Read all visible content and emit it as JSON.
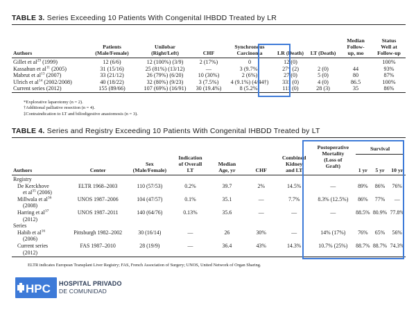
{
  "table3": {
    "label": "TABLE 3.",
    "title": "Series Exceeding 10 Patients With Congenital IHBDD Treated by LR",
    "headers": {
      "authors": "Authors",
      "patients": [
        "Patients",
        "(Male/Female)"
      ],
      "unilobar": [
        "Unilobar",
        "(Right/Left)"
      ],
      "chf": "CHF",
      "synch": [
        "Synchronous",
        "Carcinoma"
      ],
      "lr": "LR (Death)",
      "lt": "LT (Death)",
      "median": [
        "Median",
        "Follow-",
        "up, mo"
      ],
      "status": [
        "Status",
        "Well at",
        "Follow-up"
      ]
    },
    "rows": [
      {
        "author": "Gillet et al",
        "ref": "29",
        "year": " (1999)",
        "patients": "12 (6/6)",
        "unilobar": "12 (100%) (3/9)",
        "chf": "2 (17%)",
        "synch": "0",
        "lr": "12 (0)",
        "lt": "",
        "median": "",
        "status": "100%"
      },
      {
        "author": "Kassahun et al",
        "ref": "11",
        "year": " (2005)",
        "patients": "31 (15/16)",
        "unilobar": "25 (81%) (13/12)",
        "chf": "—",
        "synch": "3 (9.7%)",
        "lr": "27* (2)",
        "lt": "2 (0)",
        "median": "44",
        "status": "93%"
      },
      {
        "author": "Mabrut et al",
        "ref": "13",
        "year": " (2007)",
        "patients": "33 (21/12)",
        "unilobar": "26 (79%) (6/20)",
        "chf": "10 (30%)",
        "synch": "2 (6%)",
        "lr": "27 (0)",
        "lt": "5 (0)",
        "median": "80",
        "status": "87%"
      },
      {
        "author": "Ulrich et al",
        "ref": "14",
        "year": " (2002/2008)",
        "patients": "40 (18/22)",
        "unilobar": "32 (80%) (9/23)",
        "chf": "3 (7.5%)",
        "synch": "4 (9.1%) (4/44†)",
        "lr": "33‡ (0)",
        "lt": "4 (0)",
        "median": "86.5",
        "status": "100%"
      },
      {
        "author": "Current series (2012)",
        "ref": "",
        "year": "",
        "patients": "155 (89/66)",
        "unilobar": "107 (69%) (16/91)",
        "chf": "30 (19.4%)",
        "synch": "8 (5.2%)",
        "lr": "111 (0)",
        "lt": "28 (3)",
        "median": "35",
        "status": "86%"
      }
    ],
    "notes": [
      "*Explorative laparotomy (n = 2).",
      "†Additional palliative resection (n = 4).",
      "‡Contraindication to LT and biliodigestive anastomosis (n = 3)."
    ]
  },
  "table4": {
    "label": "TABLE 4.",
    "title": "Series and Registry Exceeding 10 Patients With Congenital IHBDD Treated by LT",
    "headers": {
      "authors": "Authors",
      "center": "Center",
      "sex": [
        "Sex",
        "(Male/Female)"
      ],
      "indication": [
        "Indication",
        "of Overall",
        "LT"
      ],
      "median": [
        "Median",
        "Age, yr"
      ],
      "chf": "CHF",
      "combined": [
        "Combined",
        "Kidney",
        "and LT"
      ],
      "postop": [
        "Postoperative",
        "Mortality",
        "(Loss of",
        "Graft)"
      ],
      "survival": "Survival",
      "yr1": "1 yr",
      "yr5": "5 yr",
      "yr10": "10 yr"
    },
    "sections": [
      {
        "name": "Registry",
        "rows": [
          {
            "author": [
              "De Kerckhove",
              "et al",
              "35",
              "(2006)"
            ],
            "center": "ELTR 1968–2003",
            "sex": "110 (57/53)",
            "indication": "0.2%",
            "median": "39.7",
            "chf": "2%",
            "combined": "14.5%",
            "postop": "—",
            "yr1": "89%",
            "yr5": "86%",
            "yr10": "76%"
          },
          {
            "author": [
              "Millwala et al",
              "36",
              ""
            ],
            "author2": "(2008)",
            "center": "UNOS 1987–2006",
            "sex": "104 (47/57)",
            "indication": "0.1%",
            "median": "35.1",
            "chf": "—",
            "combined": "7.7%",
            "postop": "8.3% (12.5%)",
            "yr1": "86%",
            "yr5": "77%",
            "yr10": "—"
          },
          {
            "author": [
              "Harring et al",
              "37",
              ""
            ],
            "author2": "(2012)",
            "center": "UNOS 1987–2011",
            "sex": "140 (64/76)",
            "indication": "0.13%",
            "median": "35.6",
            "chf": "—",
            "combined": "—",
            "postop": "—",
            "yr1": "88.5%",
            "yr5": "80.9%",
            "yr10": "77.8%"
          }
        ]
      },
      {
        "name": "Series",
        "rows": [
          {
            "author": [
              "Habib et al",
              "16",
              ""
            ],
            "author2": "(2006)",
            "center": "Pittsburgh 1982–2002",
            "sex": "30 (16/14)",
            "indication": "—",
            "median": "26",
            "chf": "30%",
            "combined": "—",
            "postop": "14% (17%)",
            "yr1": "76%",
            "yr5": "65%",
            "yr10": "56%"
          },
          {
            "author": [
              "Current series",
              "",
              ""
            ],
            "author2": "(2012)",
            "center": "FAS 1987–2010",
            "sex": "28 (19/9)",
            "indication": "—",
            "median": "36.4",
            "chf": "43%",
            "combined": "14.3%",
            "postop": "10.7% (25%)",
            "yr1": "88.7%",
            "yr5": "88.7%",
            "yr10": "74.3%"
          }
        ]
      }
    ],
    "legend": "ELTR indicates European Transplant Liver Registry; FAS, French Association of Surgery; UNOS, United Network of Organ Sharing."
  },
  "logo": {
    "mark": "HPC",
    "line1": "HOSPITAL PRIVADO",
    "line2": "DE COMUNIDAD",
    "color": "#3d7ad8"
  }
}
